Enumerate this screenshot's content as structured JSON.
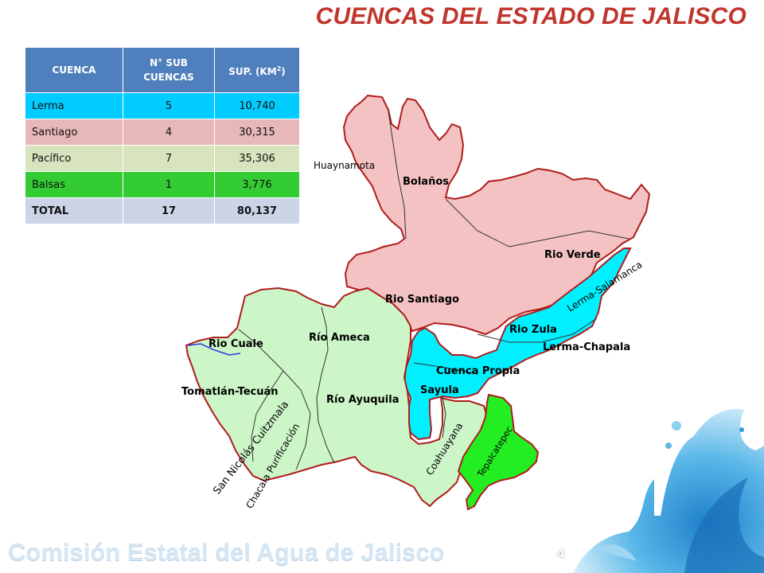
{
  "slide": {
    "title": "CUENCAS DEL ESTADO DE JALISCO",
    "footer_brand": "Comisión Estatal del Agua de Jalisco",
    "page_number": "4"
  },
  "table": {
    "headers": {
      "basin": "CUENCA",
      "sub_basins": "N° SUB CUENCAS",
      "surface_main": "SUP. (KM",
      "surface_sup": "2",
      "surface_close": ")"
    },
    "rows": [
      {
        "name": "Lerma",
        "sub_basins": "5",
        "surface": "10,740",
        "color": "#00ccff"
      },
      {
        "name": "Santiago",
        "sub_basins": "4",
        "surface": "30,315",
        "color": "#e6b8b7"
      },
      {
        "name": "Pacífico",
        "sub_basins": "7",
        "surface": "35,306",
        "color": "#d7e4bd"
      },
      {
        "name": "Balsas",
        "sub_basins": "1",
        "surface": "3,776",
        "color": "#33cc33"
      },
      {
        "name": "TOTAL",
        "sub_basins": "17",
        "surface": "80,137",
        "color": "#ccd5e8"
      }
    ]
  },
  "map": {
    "region_colors": {
      "santiago": "#f4c2c2",
      "lerma": "#00f0ff",
      "pacifico": "#ccf5c8",
      "balsas": "#22ee22",
      "borders": "#b01c1c"
    },
    "labels": {
      "huaynamota": "Huaynamota",
      "bolanos": "Bolaños",
      "rio_verde": "Rio Verde",
      "rio_santiago": "Rio Santiago",
      "lerma_salamanca": "Lerma-Salamanca",
      "rio_zula": "Rio Zula",
      "lerma_chapala": "Lerma-Chapala",
      "cuenca_propia": "Cuenca Propia",
      "sayula": "Sayula",
      "rio_ameca": "Río Ameca",
      "rio_cuale": "Rio Cuale",
      "tomatlan_tecuan": "Tomatlán-Tecuán",
      "rio_ayuquila": "Río Ayuquila",
      "san_nicolas_cuitzmala": "San Nicolás Cuitzmala",
      "chacala_purificacion": "Chacala Purificación",
      "coahuayana": "Coahuayana",
      "tepalcatepec": "Tepalcatepec"
    }
  }
}
